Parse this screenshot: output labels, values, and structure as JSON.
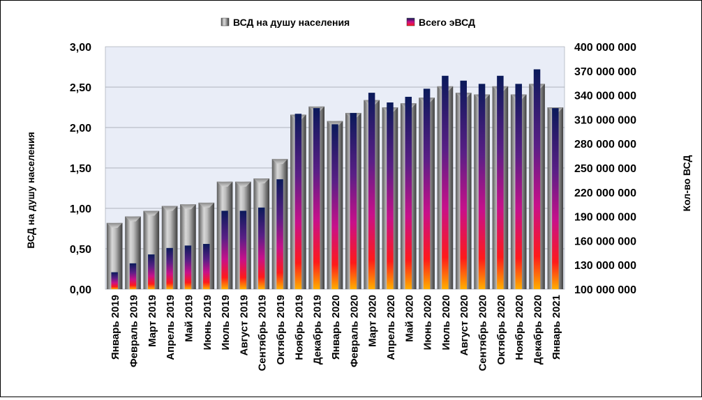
{
  "chart_data": {
    "type": "bar",
    "categories": [
      "Январь 2019",
      "Февраль 2019",
      "Март 2019",
      "Апрель 2019",
      "Май 2019",
      "Июнь 2019",
      "Июль 2019",
      "Август 2019",
      "Сентябрь 2019",
      "Октябрь 2019",
      "Ноябрь 2019",
      "Декабрь 2019",
      "Январь 2020",
      "Февраль 2020",
      "Март 2020",
      "Апрель 2020",
      "Май 2020",
      "Июнь 2020",
      "Июль 2020",
      "Август 2020",
      "Сентябрь 2020",
      "Октябрь 2020",
      "Ноябрь 2020",
      "Декабрь 2020",
      "Январь 2021"
    ],
    "series": [
      {
        "name": "ВСД на душу населения",
        "axis": "left",
        "values": [
          0.82,
          0.9,
          0.97,
          1.03,
          1.05,
          1.07,
          1.33,
          1.33,
          1.37,
          1.61,
          2.16,
          2.26,
          2.08,
          2.18,
          2.34,
          2.25,
          2.3,
          2.37,
          2.51,
          2.43,
          2.41,
          2.51,
          2.41,
          2.54,
          2.25
        ]
      },
      {
        "name": "Всего эВСД",
        "axis": "right",
        "values": [
          121000000,
          132000000,
          143000000,
          151000000,
          154000000,
          156000000,
          197000000,
          197000000,
          201000000,
          236000000,
          317000000,
          324000000,
          304000000,
          318000000,
          343000000,
          331000000,
          338000000,
          348000000,
          364000000,
          358000000,
          354000000,
          364000000,
          354000000,
          372000000,
          324000000
        ]
      }
    ],
    "ylabel": "ВСД на душу населения",
    "y2label": "Кол-во ВСД",
    "ylim": [
      0,
      3.0
    ],
    "y2lim": [
      100000000,
      400000000
    ],
    "yticks": [
      "0,00",
      "0,50",
      "1,00",
      "1,50",
      "2,00",
      "2,50",
      "3,00"
    ],
    "y2ticks": [
      "100 000 000",
      "130 000 000",
      "160 000 000",
      "190 000 000",
      "220 000 000",
      "250 000 000",
      "280 000 000",
      "310 000 000",
      "340 000 000",
      "370 000 000",
      "400 000 000"
    ],
    "legend_position": "top",
    "grid": true,
    "colors": {
      "plot_bg": "#e9edf7",
      "bar1_light": "#d4d4d4",
      "bar1_dark": "#4a4a4a",
      "bar2_top": "#0a1a5a",
      "bar2_mid": "#c8108a",
      "bar2_low": "#ff1a1a",
      "bar2_bottom": "#ffb000"
    }
  }
}
